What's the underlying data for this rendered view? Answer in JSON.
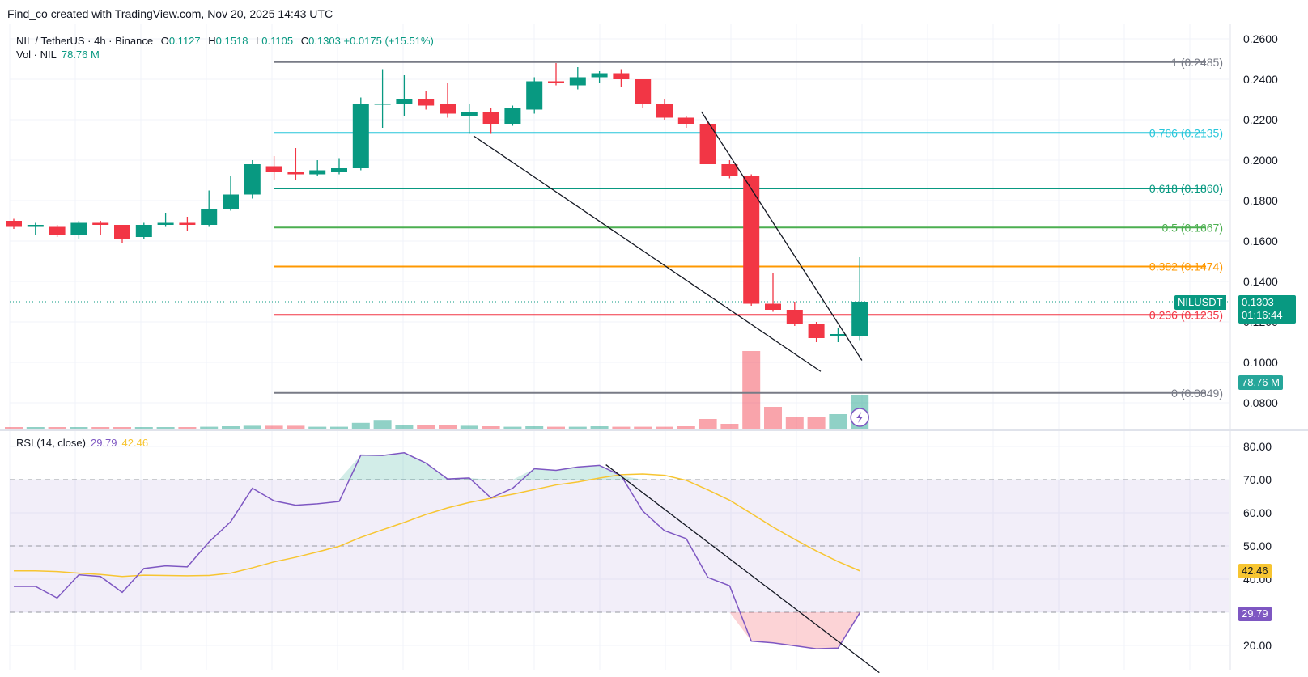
{
  "header": {
    "attribution": "Find_co created with TradingView.com, Nov 20, 2025 14:43 UTC"
  },
  "legend": {
    "symbol": "NIL / TetherUS · 4h · Binance",
    "open_label": "O",
    "open": "0.1127",
    "high_label": "H",
    "high": "0.1518",
    "low_label": "L",
    "low": "0.1105",
    "close_label": "C",
    "close": "0.1303",
    "change": "+0.0175 (+15.51%)",
    "volume_label": "Vol · NIL",
    "volume": "78.76 M"
  },
  "rsi_legend": {
    "label": "RSI (14, close)",
    "rsi_value": "29.79",
    "ma_value": "42.46"
  },
  "price_tag": {
    "symbol": "NILUSDT",
    "price": "0.1303",
    "countdown": "01:16:44"
  },
  "volume_tag": "78.76 M",
  "rsi_tags": {
    "rsi": "29.79",
    "ma": "42.46"
  },
  "colors": {
    "up": "#089981",
    "down": "#f23645",
    "rsi": "#7e57c2",
    "rsi_ma": "#f7c531",
    "rsi_band": "#7e57c2"
  },
  "chart_data": [
    {
      "type": "candlestick",
      "ylim": [
        0.07,
        0.265
      ],
      "yticks": [
        "0.0800",
        "0.1000",
        "0.1200",
        "0.1400",
        "0.1600",
        "0.1800",
        "0.2000",
        "0.2200",
        "0.2400",
        "0.2600"
      ],
      "candles": [
        {
          "o": 0.17,
          "h": 0.171,
          "l": 0.166,
          "c": 0.167
        },
        {
          "o": 0.167,
          "h": 0.169,
          "l": 0.163,
          "c": 0.168
        },
        {
          "o": 0.167,
          "h": 0.168,
          "l": 0.162,
          "c": 0.163
        },
        {
          "o": 0.163,
          "h": 0.17,
          "l": 0.161,
          "c": 0.169
        },
        {
          "o": 0.169,
          "h": 0.17,
          "l": 0.163,
          "c": 0.168
        },
        {
          "o": 0.168,
          "h": 0.168,
          "l": 0.159,
          "c": 0.161
        },
        {
          "o": 0.162,
          "h": 0.169,
          "l": 0.161,
          "c": 0.168
        },
        {
          "o": 0.168,
          "h": 0.174,
          "l": 0.167,
          "c": 0.169
        },
        {
          "o": 0.169,
          "h": 0.172,
          "l": 0.165,
          "c": 0.168
        },
        {
          "o": 0.168,
          "h": 0.185,
          "l": 0.167,
          "c": 0.176
        },
        {
          "o": 0.176,
          "h": 0.192,
          "l": 0.175,
          "c": 0.183
        },
        {
          "o": 0.183,
          "h": 0.2,
          "l": 0.181,
          "c": 0.198
        },
        {
          "o": 0.197,
          "h": 0.202,
          "l": 0.19,
          "c": 0.194
        },
        {
          "o": 0.194,
          "h": 0.206,
          "l": 0.19,
          "c": 0.193
        },
        {
          "o": 0.193,
          "h": 0.2,
          "l": 0.192,
          "c": 0.195
        },
        {
          "o": 0.194,
          "h": 0.201,
          "l": 0.193,
          "c": 0.196
        },
        {
          "o": 0.196,
          "h": 0.231,
          "l": 0.195,
          "c": 0.228
        },
        {
          "o": 0.228,
          "h": 0.245,
          "l": 0.216,
          "c": 0.228
        },
        {
          "o": 0.228,
          "h": 0.242,
          "l": 0.222,
          "c": 0.23
        },
        {
          "o": 0.23,
          "h": 0.234,
          "l": 0.225,
          "c": 0.227
        },
        {
          "o": 0.228,
          "h": 0.238,
          "l": 0.221,
          "c": 0.223
        },
        {
          "o": 0.222,
          "h": 0.228,
          "l": 0.213,
          "c": 0.224
        },
        {
          "o": 0.224,
          "h": 0.226,
          "l": 0.213,
          "c": 0.218
        },
        {
          "o": 0.218,
          "h": 0.227,
          "l": 0.217,
          "c": 0.226
        },
        {
          "o": 0.225,
          "h": 0.241,
          "l": 0.223,
          "c": 0.239
        },
        {
          "o": 0.239,
          "h": 0.248,
          "l": 0.237,
          "c": 0.238
        },
        {
          "o": 0.237,
          "h": 0.246,
          "l": 0.235,
          "c": 0.241
        },
        {
          "o": 0.241,
          "h": 0.244,
          "l": 0.238,
          "c": 0.243
        },
        {
          "o": 0.243,
          "h": 0.245,
          "l": 0.236,
          "c": 0.24
        },
        {
          "o": 0.24,
          "h": 0.24,
          "l": 0.226,
          "c": 0.228
        },
        {
          "o": 0.228,
          "h": 0.23,
          "l": 0.22,
          "c": 0.221
        },
        {
          "o": 0.221,
          "h": 0.222,
          "l": 0.216,
          "c": 0.218
        },
        {
          "o": 0.218,
          "h": 0.219,
          "l": 0.198,
          "c": 0.198
        },
        {
          "o": 0.198,
          "h": 0.2,
          "l": 0.191,
          "c": 0.192
        },
        {
          "o": 0.192,
          "h": 0.193,
          "l": 0.128,
          "c": 0.129
        },
        {
          "o": 0.129,
          "h": 0.144,
          "l": 0.125,
          "c": 0.126
        },
        {
          "o": 0.126,
          "h": 0.13,
          "l": 0.118,
          "c": 0.119
        },
        {
          "o": 0.119,
          "h": 0.12,
          "l": 0.11,
          "c": 0.112
        },
        {
          "o": 0.113,
          "h": 0.117,
          "l": 0.11,
          "c": 0.114
        },
        {
          "o": 0.113,
          "h": 0.152,
          "l": 0.111,
          "c": 0.13
        }
      ],
      "volume": [
        0.02,
        0.02,
        0.02,
        0.02,
        0.02,
        0.02,
        0.02,
        0.02,
        0.03,
        0.04,
        0.05,
        0.06,
        0.06,
        0.06,
        0.04,
        0.04,
        0.12,
        0.18,
        0.08,
        0.07,
        0.07,
        0.06,
        0.05,
        0.04,
        0.05,
        0.04,
        0.04,
        0.05,
        0.04,
        0.04,
        0.04,
        0.05,
        0.2,
        0.1,
        1.6,
        0.45,
        0.25,
        0.25,
        0.3,
        0.7
      ],
      "fibonacci": [
        {
          "label": "1 (0.2485)",
          "value": 0.2485,
          "color": "#787b86"
        },
        {
          "label": "0.786 (0.2135)",
          "value": 0.2135,
          "color": "#26c6da"
        },
        {
          "label": "0.618 (0.1860)",
          "value": 0.186,
          "color": "#089981"
        },
        {
          "label": "0.5 (0.1667)",
          "value": 0.1667,
          "color": "#4caf50"
        },
        {
          "label": "0.382 (0.1474)",
          "value": 0.1474,
          "color": "#ff9800"
        },
        {
          "label": "0.236 (0.1235)",
          "value": 0.1235,
          "color": "#f23645"
        },
        {
          "label": "0 (0.0849)",
          "value": 0.0849,
          "color": "#787b86"
        }
      ],
      "trendlines": [
        {
          "from": [
            21.2,
            0.212
          ],
          "to": [
            37.2,
            0.0955
          ]
        },
        {
          "from": [
            31.7,
            0.224
          ],
          "to": [
            39.1,
            0.101
          ]
        }
      ]
    },
    {
      "type": "line",
      "title": "RSI (14, close)",
      "ylim": [
        15,
        83
      ],
      "yticks": [
        "20.00",
        "30.00",
        "40.00",
        "50.00",
        "60.00",
        "70.00",
        "80.00"
      ],
      "bands": [
        30,
        50,
        70
      ],
      "series": [
        {
          "name": "RSI",
          "values": [
            37.8,
            37.8,
            34.3,
            41.3,
            40.8,
            36.0,
            43.2,
            44.0,
            43.7,
            51.2,
            57.3,
            67.4,
            63.6,
            62.3,
            62.7,
            63.4,
            77.4,
            77.3,
            78.1,
            75.0,
            70.2,
            70.5,
            64.5,
            67.4,
            73.3,
            72.8,
            73.8,
            74.3,
            71.2,
            60.5,
            54.6,
            52.2,
            40.5,
            38.0,
            21.3,
            20.8,
            19.9,
            19.0,
            19.2,
            29.8
          ]
        },
        {
          "name": "RSI-based MA",
          "values": [
            42.5,
            42.5,
            42.3,
            41.8,
            41.4,
            40.8,
            41.2,
            41.1,
            41.0,
            41.1,
            41.8,
            43.4,
            45.2,
            46.6,
            48.2,
            49.9,
            52.6,
            54.9,
            57.1,
            59.5,
            61.5,
            63.1,
            64.4,
            65.6,
            67.0,
            68.4,
            69.3,
            70.5,
            71.5,
            71.7,
            71.3,
            69.8,
            66.9,
            63.8,
            59.8,
            55.7,
            52.0,
            48.5,
            45.3,
            42.5
          ]
        }
      ],
      "trendline": {
        "from": [
          27.3,
          74.5
        ],
        "to": [
          39.9,
          11.8
        ]
      }
    }
  ]
}
